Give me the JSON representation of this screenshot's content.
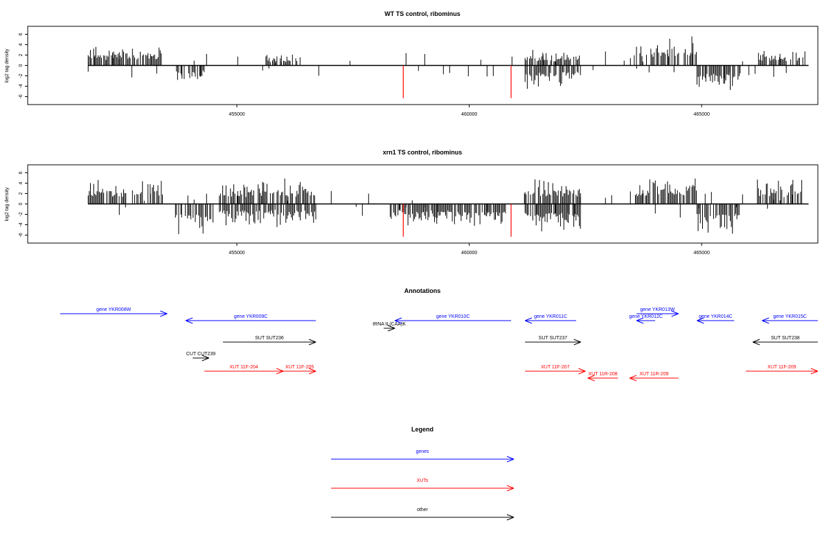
{
  "colors": {
    "genes": "#0000ff",
    "xuts": "#ff0000",
    "other": "#000000",
    "highlight": "#ff0000",
    "bars": "#000000"
  },
  "chart_data": [
    {
      "type": "bar",
      "title": "WT TS control, ribominus",
      "ylabel": "log2 tag density",
      "ylim": [
        -7,
        7
      ],
      "yticks": [
        -6,
        -4,
        -2,
        0,
        2,
        4,
        6
      ],
      "xlim": [
        450500,
        467500
      ],
      "xticks": [
        455000,
        460000,
        465000
      ],
      "highlights": [
        458580,
        460900
      ],
      "bar_blocks": [
        {
          "strand": "plus",
          "range": [
            451800,
            453400
          ],
          "max": 4.0
        },
        {
          "strand": "minus",
          "range": [
            453700,
            454300
          ],
          "max": -3.5
        },
        {
          "strand": "plus",
          "range": [
            455600,
            456300
          ],
          "max": 2.5
        },
        {
          "strand": "plus",
          "range": [
            461200,
            462400
          ],
          "max": 3.0
        },
        {
          "strand": "minus",
          "range": [
            461200,
            462400
          ],
          "max": -4.5
        },
        {
          "strand": "plus",
          "range": [
            463550,
            464900
          ],
          "max": 5.6
        },
        {
          "strand": "minus",
          "range": [
            464900,
            465850
          ],
          "max": -5.5
        },
        {
          "strand": "plus",
          "range": [
            466200,
            467200
          ],
          "max": 3.0
        }
      ]
    },
    {
      "type": "bar",
      "title": "xrn1 TS control, ribominus",
      "ylabel": "log2 tag density",
      "ylim": [
        -7,
        7
      ],
      "yticks": [
        -6,
        -4,
        -2,
        0,
        2,
        4,
        6
      ],
      "xlim": [
        450500,
        467500
      ],
      "xticks": [
        455000,
        460000,
        465000
      ],
      "highlights": [
        458580,
        460900
      ],
      "bar_blocks": [
        {
          "strand": "plus",
          "range": [
            451800,
            453400
          ],
          "max": 5.0
        },
        {
          "strand": "minus",
          "range": [
            453700,
            454500
          ],
          "max": -6.0
        },
        {
          "strand": "plus",
          "range": [
            454600,
            456700
          ],
          "max": 5.0
        },
        {
          "strand": "minus",
          "range": [
            454600,
            456700
          ],
          "max": -4.5
        },
        {
          "strand": "minus",
          "range": [
            458300,
            460800
          ],
          "max": -4.5
        },
        {
          "strand": "plus",
          "range": [
            461200,
            462400
          ],
          "max": 5.0
        },
        {
          "strand": "minus",
          "range": [
            461200,
            462400
          ],
          "max": -6.0
        },
        {
          "strand": "plus",
          "range": [
            463550,
            464900
          ],
          "max": 6.0
        },
        {
          "strand": "minus",
          "range": [
            464900,
            465850
          ],
          "max": -6.5
        },
        {
          "strand": "plus",
          "range": [
            466200,
            467200
          ],
          "max": 5.0
        }
      ]
    }
  ],
  "annotations": {
    "title": "Annotations",
    "items": [
      {
        "label": "gene YKR008W",
        "kind": "genes",
        "dir": "right",
        "start": 451200,
        "end": 453500,
        "row": 0
      },
      {
        "label": "gene YKR009C",
        "kind": "genes",
        "dir": "left",
        "start": 453900,
        "end": 456700,
        "row": 1
      },
      {
        "label": "tRNA tL(CAA)K",
        "kind": "other",
        "dir": "right",
        "start": 458160,
        "end": 458400,
        "row": 2
      },
      {
        "label": "gene YKR010C",
        "kind": "genes",
        "dir": "left",
        "start": 458400,
        "end": 460900,
        "row": 1
      },
      {
        "label": "gene YKR011C",
        "kind": "genes",
        "dir": "left",
        "start": 461200,
        "end": 462300,
        "row": 1
      },
      {
        "label": "gene YKR012C",
        "kind": "genes",
        "dir": "left",
        "start": 463600,
        "end": 464000,
        "row": 1
      },
      {
        "label": "gene YKR013W",
        "kind": "genes",
        "dir": "right",
        "start": 463600,
        "end": 464500,
        "row": 0
      },
      {
        "label": "gene YKR014C",
        "kind": "genes",
        "dir": "left",
        "start": 464900,
        "end": 465700,
        "row": 1
      },
      {
        "label": "gene YKR015C",
        "kind": "genes",
        "dir": "left",
        "start": 466300,
        "end": 467500,
        "row": 1
      },
      {
        "label": "SUT SUT236",
        "kind": "other",
        "dir": "right",
        "start": 454700,
        "end": 456700,
        "row": 3
      },
      {
        "label": "SUT SUT237",
        "kind": "other",
        "dir": "right",
        "start": 461200,
        "end": 462400,
        "row": 3
      },
      {
        "label": "SUT SUT238",
        "kind": "other",
        "dir": "left",
        "start": 466100,
        "end": 467500,
        "row": 3
      },
      {
        "label": "CUT CUT239",
        "kind": "other",
        "dir": "right",
        "start": 454050,
        "end": 454400,
        "row": 4
      },
      {
        "label": "XUT 11F-204",
        "kind": "xuts",
        "dir": "right",
        "start": 454300,
        "end": 456000,
        "row": 5
      },
      {
        "label": "XUT 11F-205",
        "kind": "xuts",
        "dir": "right",
        "start": 456000,
        "end": 456700,
        "row": 5
      },
      {
        "label": "XUT 11F-207",
        "kind": "xuts",
        "dir": "right",
        "start": 461200,
        "end": 462500,
        "row": 5
      },
      {
        "label": "XUT 11R-208",
        "kind": "xuts",
        "dir": "left",
        "start": 462550,
        "end": 463200,
        "row": 6
      },
      {
        "label": "XUT 11R-209",
        "kind": "xuts",
        "dir": "left",
        "start": 463450,
        "end": 464500,
        "row": 6
      },
      {
        "label": "XUT 11F-209",
        "kind": "xuts",
        "dir": "right",
        "start": 465950,
        "end": 467500,
        "row": 5
      }
    ]
  },
  "legend": {
    "title": "Legend",
    "entries": [
      {
        "label": "genes",
        "kind": "genes"
      },
      {
        "label": "XUTs",
        "kind": "xuts"
      },
      {
        "label": "other",
        "kind": "other"
      }
    ]
  }
}
